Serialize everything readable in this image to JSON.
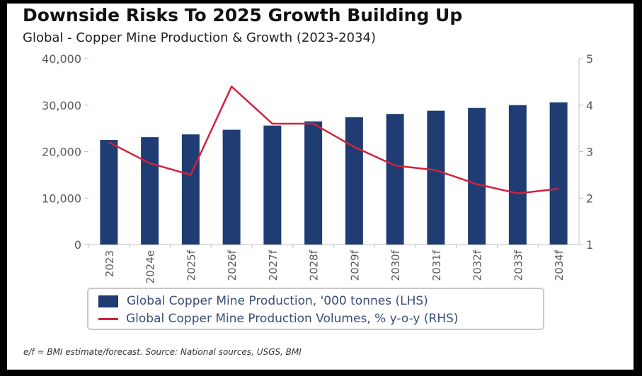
{
  "header": {
    "title": "Downside Risks To 2025 Growth Building Up",
    "subtitle": "Global - Copper Mine Production & Growth (2023-2034)"
  },
  "footnote": "e/f = BMI estimate/forecast. Source: National sources, USGS, BMI",
  "colors": {
    "bar": "#1f3d73",
    "line": "#d4213d",
    "axis_text": "#595959",
    "axis_line": "#c0c0c0"
  },
  "chart_data": {
    "type": "bar",
    "title": "Downside Risks To 2025 Growth Building Up",
    "subtitle": "Global - Copper Mine Production & Growth (2023-2034)",
    "categories": [
      "2023",
      "2024e",
      "2025f",
      "2026f",
      "2027f",
      "2028f",
      "2029f",
      "2030f",
      "2031f",
      "2032f",
      "2033f",
      "2034f"
    ],
    "series": [
      {
        "name": "Global Copper Mine Production, '000 tonnes (LHS)",
        "type": "bar",
        "axis": "left",
        "values": [
          22500,
          23100,
          23700,
          24700,
          25600,
          26500,
          27400,
          28100,
          28800,
          29400,
          30000,
          30600
        ]
      },
      {
        "name": "Global Copper Mine Production Volumes, % y-o-y (RHS)",
        "type": "line",
        "axis": "right",
        "values": [
          3.2,
          2.75,
          2.5,
          4.4,
          3.6,
          3.6,
          3.1,
          2.7,
          2.6,
          2.3,
          2.1,
          2.2
        ]
      }
    ],
    "y_left": {
      "range": [
        0,
        40000
      ],
      "ticks": [
        "0",
        "10,000",
        "20,000",
        "30,000",
        "40,000"
      ]
    },
    "y_right": {
      "range": [
        1,
        5
      ],
      "ticks": [
        "1",
        "2",
        "3",
        "4",
        "5"
      ]
    },
    "grid": false,
    "legend_position": "bottom"
  }
}
